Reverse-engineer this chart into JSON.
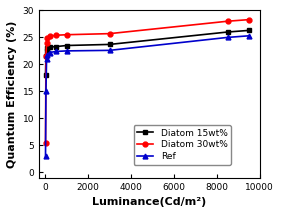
{
  "title": "",
  "xlabel": "Luminance(Cd/m²)",
  "ylabel": "Quantum Efficiency (%)",
  "xlim": [
    -300,
    10000
  ],
  "ylim": [
    -1,
    30
  ],
  "xticks": [
    0,
    2000,
    4000,
    6000,
    8000,
    10000
  ],
  "yticks": [
    0,
    5,
    10,
    15,
    20,
    25,
    30
  ],
  "series": [
    {
      "label": "Diatom 15wt%",
      "color": "#000000",
      "marker": "s",
      "x": [
        10,
        30,
        60,
        100,
        200,
        500,
        1000,
        3000,
        8500,
        9500
      ],
      "y": [
        18.0,
        21.5,
        22.5,
        23.0,
        23.2,
        23.3,
        23.5,
        23.7,
        26.0,
        26.3
      ]
    },
    {
      "label": "Diatom 30wt%",
      "color": "#ff0000",
      "marker": "o",
      "x": [
        10,
        30,
        60,
        100,
        200,
        500,
        1000,
        3000,
        8500,
        9500
      ],
      "y": [
        5.5,
        21.5,
        24.0,
        24.8,
        25.2,
        25.4,
        25.5,
        25.7,
        28.0,
        28.3
      ]
    },
    {
      "label": "Ref",
      "color": "#0000cc",
      "marker": "^",
      "x": [
        10,
        30,
        60,
        100,
        200,
        500,
        1000,
        3000,
        8500,
        9500
      ],
      "y": [
        3.0,
        15.0,
        21.0,
        21.8,
        22.2,
        22.4,
        22.5,
        22.6,
        25.0,
        25.3
      ]
    }
  ],
  "background_color": "#ffffff",
  "tick_fontsize": 6.5,
  "label_fontsize": 8,
  "legend_fontsize": 6.5
}
